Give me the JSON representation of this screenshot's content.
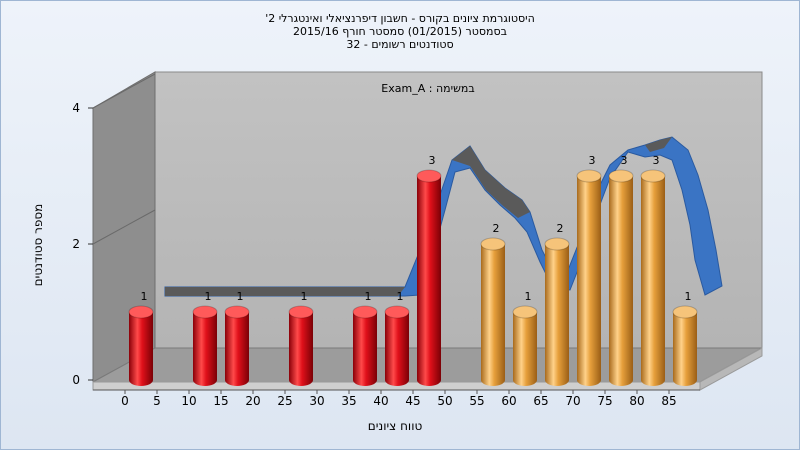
{
  "chart_data": {
    "type": "bar",
    "title": [
      "היסטוגרמת ציונים בקורס - חשבון דיפרנציאלי ואינטגרלי 2'",
      "בסמסטר (01/2015) סמסטר חורף 2015/16",
      "סטודנטים רשומים - 32"
    ],
    "annotation": "במשימה : Exam_A",
    "xlabel": "טווח ציונים",
    "ylabel": "מספר סטודנטים",
    "x_ticks": [
      "0",
      "5",
      "10",
      "15",
      "20",
      "25",
      "30",
      "35",
      "40",
      "45",
      "50",
      "55",
      "60",
      "65",
      "70",
      "75",
      "80",
      "85"
    ],
    "y_ticks": [
      "0",
      "2",
      "4"
    ],
    "ylim": [
      0,
      4
    ],
    "bars": [
      {
        "x": 0,
        "value": 1,
        "color": "red"
      },
      {
        "x": 10,
        "value": 1,
        "color": "red"
      },
      {
        "x": 15,
        "value": 1,
        "color": "red"
      },
      {
        "x": 25,
        "value": 1,
        "color": "red"
      },
      {
        "x": 35,
        "value": 1,
        "color": "red"
      },
      {
        "x": 40,
        "value": 1,
        "color": "red"
      },
      {
        "x": 45,
        "value": 3,
        "color": "red"
      },
      {
        "x": 55,
        "value": 2,
        "color": "orange"
      },
      {
        "x": 60,
        "value": 1,
        "color": "orange"
      },
      {
        "x": 65,
        "value": 2,
        "color": "orange"
      },
      {
        "x": 70,
        "value": 3,
        "color": "orange"
      },
      {
        "x": 75,
        "value": 3,
        "color": "orange"
      },
      {
        "x": 80,
        "value": 3,
        "color": "orange"
      },
      {
        "x": 85,
        "value": 1,
        "color": "orange"
      }
    ],
    "colors": {
      "red": "#e0101a",
      "orange": "#e7a03c",
      "ribbon_blue": "#3a74c4",
      "ribbon_gray": "#5a5a5a"
    }
  }
}
